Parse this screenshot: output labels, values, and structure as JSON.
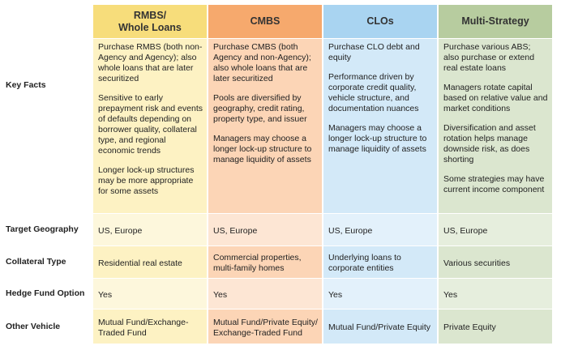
{
  "columns": [
    {
      "key": "rmbs",
      "header": "RMBS/\nWhole Loans",
      "header_color": "#f7dd7b",
      "cell_color": "#fdf2c3",
      "cell_color_alt": "#fdf7dc"
    },
    {
      "key": "cmbs",
      "header": "CMBS",
      "header_color": "#f6a96d",
      "cell_color": "#fcd5b6",
      "cell_color_alt": "#fde6d4"
    },
    {
      "key": "clos",
      "header": "CLOs",
      "header_color": "#a9d4f1",
      "cell_color": "#d3e9f8",
      "cell_color_alt": "#e3f1fb"
    },
    {
      "key": "multi",
      "header": "Multi-Strategy",
      "header_color": "#b7cc9f",
      "cell_color": "#dbe6cf",
      "cell_color_alt": "#e6eedd"
    }
  ],
  "rows": [
    {
      "label": "Key Facts",
      "cells": [
        [
          "Purchase RMBS (both non-Agency and Agency); also whole loans that are later securitized",
          "Sensitive to early prepayment risk and events of defaults depending on borrower quality, collateral type, and regional economic trends",
          "Longer lock-up structures may be more appropriate for some assets"
        ],
        [
          "Purchase CMBS (both Agency and non-Agency); also whole loans that are later securitized",
          "Pools are diversified by geography, credit rating, property type, and issuer",
          "Managers may choose a longer lock-up structure to manage liquidity of assets"
        ],
        [
          "Purchase CLO debt and equity",
          "Performance driven by corporate credit quality, vehicle structure, and documentation nuances",
          "Managers may choose a longer lock-up structure to manage liquidity of assets"
        ],
        [
          "Purchase various ABS; also purchase or extend real estate loans",
          "Managers rotate capital based on relative value and market conditions",
          "Diversification and asset rotation helps manage downside risk, as does shorting",
          "Some strategies may have current income component"
        ]
      ]
    },
    {
      "label": "Target Geography",
      "cells": [
        [
          "US, Europe"
        ],
        [
          "US, Europe"
        ],
        [
          "US, Europe"
        ],
        [
          "US, Europe"
        ]
      ]
    },
    {
      "label": "Collateral Type",
      "cells": [
        [
          "Residential real estate"
        ],
        [
          "Commercial properties, multi-family homes"
        ],
        [
          "Underlying loans to corporate entities"
        ],
        [
          "Various securities"
        ]
      ]
    },
    {
      "label": "Hedge Fund Option",
      "cells": [
        [
          "Yes"
        ],
        [
          "Yes"
        ],
        [
          "Yes"
        ],
        [
          "Yes"
        ]
      ]
    },
    {
      "label": "Other Vehicle",
      "cells": [
        [
          "Mutual Fund/Exchange-Traded Fund"
        ],
        [
          "Mutual Fund/Private Equity/ Exchange-Traded Fund"
        ],
        [
          "Mutual Fund/Private Equity"
        ],
        [
          "Private Equity"
        ]
      ]
    }
  ]
}
